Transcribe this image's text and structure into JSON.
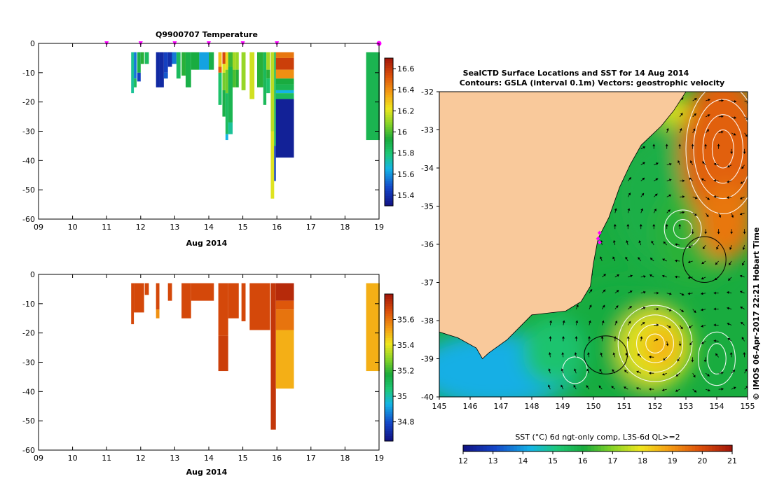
{
  "chart_data": [
    {
      "type": "heatmap",
      "name": "temperature-profile",
      "title": "Q9900707  Temperature",
      "xlabel": "Aug 2014",
      "ylabel": "",
      "xlim": [
        9,
        19
      ],
      "ylim": [
        -60,
        0
      ],
      "x_ticks": [
        "09",
        "10",
        "11",
        "12",
        "13",
        "14",
        "15",
        "16",
        "17",
        "18",
        "19"
      ],
      "y_ticks": [
        "0",
        "-10",
        "-20",
        "-30",
        "-40",
        "-50",
        "-60"
      ],
      "colorbar": {
        "min": 15.3,
        "max": 16.7,
        "ticks": [
          "16.6",
          "16.4",
          "16.2",
          "16",
          "15.8",
          "15.6",
          "15.4"
        ]
      },
      "surface_markers": [
        11,
        12,
        13,
        14,
        15,
        16
      ],
      "marker_color": "#ff00ff",
      "profiles": [
        {
          "x0": 11.72,
          "x1": 11.8,
          "segments": [
            [
              -3,
              -17,
              15.75
            ]
          ]
        },
        {
          "x0": 11.8,
          "x1": 11.88,
          "segments": [
            [
              -3,
              -12,
              15.55
            ],
            [
              -12,
              -15,
              15.85
            ]
          ]
        },
        {
          "x0": 11.9,
          "x1": 12.0,
          "segments": [
            [
              -3,
              -10,
              15.9
            ],
            [
              -10,
              -13,
              15.45
            ]
          ]
        },
        {
          "x0": 12.0,
          "x1": 12.1,
          "segments": [
            [
              -3,
              -7,
              15.95
            ]
          ]
        },
        {
          "x0": 12.12,
          "x1": 12.24,
          "segments": [
            [
              -3,
              -7,
              15.85
            ]
          ]
        },
        {
          "x0": 12.45,
          "x1": 12.55,
          "segments": [
            [
              -3,
              -15,
              15.38
            ]
          ]
        },
        {
          "x0": 12.55,
          "x1": 12.68,
          "segments": [
            [
              -3,
              -15,
              15.38
            ]
          ]
        },
        {
          "x0": 12.68,
          "x1": 12.8,
          "segments": [
            [
              -3,
              -10,
              15.45
            ],
            [
              -10,
              -12,
              15.5
            ]
          ]
        },
        {
          "x0": 12.8,
          "x1": 12.92,
          "segments": [
            [
              -3,
              -8,
              15.4
            ]
          ]
        },
        {
          "x0": 12.92,
          "x1": 13.05,
          "segments": [
            [
              -3,
              -7,
              15.55
            ]
          ]
        },
        {
          "x0": 13.05,
          "x1": 13.17,
          "segments": [
            [
              -3,
              -12,
              15.85
            ]
          ]
        },
        {
          "x0": 13.2,
          "x1": 13.32,
          "segments": [
            [
              -3,
              -11,
              15.95
            ]
          ]
        },
        {
          "x0": 13.32,
          "x1": 13.48,
          "segments": [
            [
              -3,
              -15,
              15.9
            ]
          ]
        },
        {
          "x0": 13.48,
          "x1": 13.72,
          "segments": [
            [
              -3,
              -9,
              15.92
            ]
          ]
        },
        {
          "x0": 13.72,
          "x1": 14.0,
          "segments": [
            [
              -3,
              -9,
              15.62
            ]
          ]
        },
        {
          "x0": 14.0,
          "x1": 14.15,
          "segments": [
            [
              -3,
              -9,
              15.9
            ]
          ]
        },
        {
          "x0": 14.28,
          "x1": 14.38,
          "segments": [
            [
              -3,
              -8,
              16.3
            ],
            [
              -8,
              -10,
              16.5
            ],
            [
              -10,
              -21,
              15.82
            ]
          ]
        },
        {
          "x0": 14.4,
          "x1": 14.49,
          "segments": [
            [
              -3,
              -7,
              16.55
            ],
            [
              -7,
              -10,
              16.2
            ],
            [
              -10,
              -16,
              16.05
            ],
            [
              -16,
              -25,
              15.9
            ]
          ]
        },
        {
          "x0": 14.49,
          "x1": 14.57,
          "segments": [
            [
              -3,
              -9,
              16.25
            ],
            [
              -9,
              -17,
              16.05
            ],
            [
              -17,
              -31,
              15.85
            ],
            [
              -31,
              -33,
              15.65
            ]
          ]
        },
        {
          "x0": 14.57,
          "x1": 14.7,
          "segments": [
            [
              -3,
              -8,
              15.98
            ],
            [
              -8,
              -27,
              15.88
            ],
            [
              -27,
              -31,
              15.75
            ]
          ]
        },
        {
          "x0": 14.7,
          "x1": 14.8,
          "segments": [
            [
              -3,
              -9,
              16.12
            ],
            [
              -9,
              -15,
              16.0
            ]
          ]
        },
        {
          "x0": 14.8,
          "x1": 14.88,
          "segments": [
            [
              -3,
              -9,
              16.1
            ],
            [
              -9,
              -15,
              15.95
            ]
          ]
        },
        {
          "x0": 14.96,
          "x1": 15.08,
          "segments": [
            [
              -3,
              -16,
              16.1
            ]
          ]
        },
        {
          "x0": 15.2,
          "x1": 15.34,
          "segments": [
            [
              -3,
              -19,
              16.18
            ]
          ]
        },
        {
          "x0": 15.42,
          "x1": 15.6,
          "segments": [
            [
              -3,
              -15,
              15.95
            ]
          ]
        },
        {
          "x0": 15.6,
          "x1": 15.69,
          "segments": [
            [
              -3,
              -21,
              15.86
            ]
          ]
        },
        {
          "x0": 15.69,
          "x1": 15.8,
          "segments": [
            [
              -3,
              -9,
              16.12
            ],
            [
              -9,
              -12,
              15.95
            ],
            [
              -12,
              -17,
              15.82
            ]
          ]
        },
        {
          "x0": 15.82,
          "x1": 15.92,
          "segments": [
            [
              -3,
              -30,
              16.15
            ],
            [
              -30,
              -53,
              16.2
            ]
          ]
        },
        {
          "x0": 15.92,
          "x1": 15.97,
          "segments": [
            [
              -3,
              -35,
              15.85
            ],
            [
              -35,
              -47,
              15.45
            ]
          ]
        },
        {
          "x0": 15.97,
          "x1": 16.5,
          "segments": [
            [
              -3,
              -5,
              16.45
            ],
            [
              -5,
              -9,
              16.58
            ],
            [
              -9,
              -12,
              16.4
            ],
            [
              -12,
              -14,
              15.92
            ],
            [
              -14,
              -16,
              15.88
            ],
            [
              -16,
              -17,
              15.65
            ],
            [
              -17,
              -19,
              15.85
            ],
            [
              -19,
              -39,
              15.35
            ]
          ]
        },
        {
          "x0": 18.62,
          "x1": 19.02,
          "segments": [
            [
              -3,
              -33,
              15.88
            ]
          ]
        }
      ]
    },
    {
      "type": "heatmap",
      "name": "salinity-profile",
      "title": "",
      "xlabel": "Aug 2014",
      "ylabel": "",
      "xlim": [
        9,
        19
      ],
      "ylim": [
        -60,
        0
      ],
      "x_ticks": [
        "09",
        "10",
        "11",
        "12",
        "13",
        "14",
        "15",
        "16",
        "17",
        "18",
        "19"
      ],
      "y_ticks": [
        "0",
        "-10",
        "-20",
        "-30",
        "-40",
        "-50",
        "-60"
      ],
      "colorbar": {
        "min": 34.65,
        "max": 35.8,
        "ticks": [
          "35.6",
          "35.4",
          "35.2",
          "35",
          "34.8"
        ]
      },
      "profiles": [
        {
          "x0": 11.72,
          "x1": 11.8,
          "segments": [
            [
              -3,
              -17,
              35.68
            ]
          ]
        },
        {
          "x0": 11.8,
          "x1": 12.1,
          "segments": [
            [
              -3,
              -13,
              35.68
            ]
          ]
        },
        {
          "x0": 12.12,
          "x1": 12.24,
          "segments": [
            [
              -3,
              -7,
              35.68
            ]
          ]
        },
        {
          "x0": 12.45,
          "x1": 12.55,
          "segments": [
            [
              -3,
              -12,
              35.68
            ],
            [
              -12,
              -15,
              35.55
            ]
          ]
        },
        {
          "x0": 12.8,
          "x1": 12.92,
          "segments": [
            [
              -3,
              -9,
              35.68
            ]
          ]
        },
        {
          "x0": 13.2,
          "x1": 13.48,
          "segments": [
            [
              -3,
              -15,
              35.68
            ]
          ]
        },
        {
          "x0": 13.48,
          "x1": 14.15,
          "segments": [
            [
              -3,
              -9,
              35.68
            ]
          ]
        },
        {
          "x0": 14.28,
          "x1": 14.57,
          "segments": [
            [
              -3,
              -21,
              35.68
            ],
            [
              -21,
              -33,
              35.7
            ]
          ]
        },
        {
          "x0": 14.57,
          "x1": 14.88,
          "segments": [
            [
              -3,
              -15,
              35.68
            ]
          ]
        },
        {
          "x0": 14.96,
          "x1": 15.08,
          "segments": [
            [
              -3,
              -16,
              35.68
            ]
          ]
        },
        {
          "x0": 15.2,
          "x1": 15.8,
          "segments": [
            [
              -3,
              -19,
              35.68
            ]
          ]
        },
        {
          "x0": 15.82,
          "x1": 15.97,
          "segments": [
            [
              -3,
              -53,
              35.72
            ]
          ]
        },
        {
          "x0": 15.97,
          "x1": 16.5,
          "segments": [
            [
              -3,
              -9,
              35.75
            ],
            [
              -9,
              -12,
              35.65
            ],
            [
              -12,
              -19,
              35.6
            ],
            [
              -19,
              -39,
              35.5
            ]
          ]
        },
        {
          "x0": 18.62,
          "x1": 19.02,
          "segments": [
            [
              -3,
              -33,
              35.5
            ]
          ]
        }
      ]
    },
    {
      "type": "heatmap",
      "name": "sst-map",
      "title": "SealCTD Surface Locations and SST for 14 Aug 2014",
      "subtitle": "Contours: GSLA (interval 0.1m) Vectors: geostrophic velocity",
      "xlabel": "",
      "ylabel": "",
      "xlim": [
        145,
        155
      ],
      "ylim": [
        -40,
        -32
      ],
      "x_ticks": [
        "145",
        "146",
        "147",
        "148",
        "149",
        "150",
        "151",
        "152",
        "153",
        "154",
        "155"
      ],
      "y_ticks": [
        "-32",
        "-33",
        "-34",
        "-35",
        "-36",
        "-37",
        "-38",
        "-39",
        "-40"
      ],
      "colorbar": {
        "label": "SST (°C) 6d ngt-only comp, L3S-6d QL>=2",
        "min": 12,
        "max": 21,
        "ticks": [
          "12",
          "13",
          "14",
          "15",
          "16",
          "17",
          "18",
          "19",
          "20",
          "21"
        ]
      },
      "land_color": "#f9c99b",
      "coast": [
        [
          145,
          -38.3
        ],
        [
          145.6,
          -38.45
        ],
        [
          146.2,
          -38.72
        ],
        [
          146.4,
          -39.0
        ],
        [
          146.6,
          -38.85
        ],
        [
          147.2,
          -38.5
        ],
        [
          148.0,
          -37.85
        ],
        [
          149.1,
          -37.75
        ],
        [
          149.6,
          -37.5
        ],
        [
          149.9,
          -37.1
        ],
        [
          150.0,
          -36.5
        ],
        [
          150.15,
          -35.85
        ],
        [
          150.5,
          -35.3
        ],
        [
          150.85,
          -34.5
        ],
        [
          151.2,
          -33.9
        ],
        [
          151.55,
          -33.4
        ],
        [
          152.2,
          -32.9
        ],
        [
          152.6,
          -32.5
        ],
        [
          153.0,
          -32.0
        ],
        [
          145,
          -32.0
        ]
      ],
      "sst_regions": [
        {
          "center": [
            152.6,
            -34.9
          ],
          "rx": 2.0,
          "ry": 1.9,
          "value": 15.9
        },
        {
          "center": [
            153.3,
            -35.7
          ],
          "rx": 1.3,
          "ry": 1.3,
          "value": 16.2
        },
        {
          "center": [
            154.2,
            -33.5
          ],
          "rx": 1.4,
          "ry": 2.0,
          "value": 19.7
        },
        {
          "center": [
            154.3,
            -35.4
          ],
          "rx": 0.9,
          "ry": 1.0,
          "value": 19.4
        },
        {
          "center": [
            152.5,
            -32.5
          ],
          "rx": 0.6,
          "ry": 0.4,
          "value": 17.8
        },
        {
          "center": [
            150.9,
            -38.6
          ],
          "rx": 2.1,
          "ry": 1.7,
          "value": 16.0
        },
        {
          "center": [
            152.0,
            -38.7
          ],
          "rx": 1.2,
          "ry": 1.0,
          "value": 17.8
        },
        {
          "center": [
            152.2,
            -38.7
          ],
          "rx": 0.6,
          "ry": 0.55,
          "value": 18.6
        },
        {
          "center": [
            146.8,
            -39.3
          ],
          "rx": 2.6,
          "ry": 1.0,
          "value": 14.2
        },
        {
          "center": [
            148.7,
            -38.8
          ],
          "rx": 1.0,
          "ry": 0.9,
          "value": 15.3
        }
      ],
      "gsla_contours": [
        {
          "center": [
            154.2,
            -33.5
          ],
          "rx": [
            0.35,
            0.65,
            0.95,
            1.2
          ],
          "ry": [
            0.5,
            0.9,
            1.3,
            1.7
          ],
          "color": "#ffffff"
        },
        {
          "center": [
            152.9,
            -35.6
          ],
          "rx": [
            0.3,
            0.6
          ],
          "ry": [
            0.25,
            0.5
          ],
          "color": "#ffffff"
        },
        {
          "center": [
            152.0,
            -38.6
          ],
          "rx": [
            0.3,
            0.6,
            0.9,
            1.2
          ],
          "ry": [
            0.25,
            0.5,
            0.75,
            1.0
          ],
          "color": "#ffffff"
        },
        {
          "center": [
            154.0,
            -39.0
          ],
          "rx": [
            0.3,
            0.6
          ],
          "ry": [
            0.4,
            0.7
          ],
          "color": "#ffffff"
        },
        {
          "center": [
            149.4,
            -39.3
          ],
          "rx": [
            0.4
          ],
          "ry": [
            0.35
          ],
          "color": "#ffffff"
        },
        {
          "center": [
            150.4,
            -38.9
          ],
          "rx": [
            0.7
          ],
          "ry": [
            0.5
          ],
          "color": "#000000"
        },
        {
          "center": [
            153.6,
            -36.4
          ],
          "rx": [
            0.7
          ],
          "ry": [
            0.6
          ],
          "color": "#000000"
        }
      ],
      "seal_locations": [
        [
          150.2,
          -35.7
        ],
        [
          150.15,
          -35.85
        ],
        [
          150.2,
          -35.95
        ]
      ],
      "seal_color": "#ff00ff"
    }
  ],
  "side_caption": "© IMOS 06-Apr-2017 22:21 Hobart Time"
}
